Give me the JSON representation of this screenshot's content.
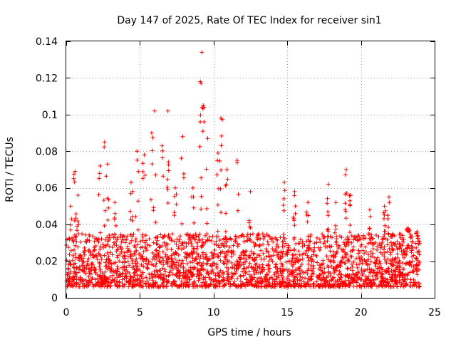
{
  "chart_data": {
    "type": "scatter",
    "title": "Day 147 of 2025, Rate Of TEC Index for receiver sin1",
    "xlabel": "GPS time / hours",
    "ylabel": "ROTI / TECUs",
    "xlim": [
      0,
      25
    ],
    "ylim": [
      0,
      0.14
    ],
    "xticks": [
      "0",
      "5",
      "10",
      "15",
      "20",
      "25"
    ],
    "yticks": [
      "0",
      "0.02",
      "0.04",
      "0.06",
      "0.08",
      "0.1",
      "0.12",
      "0.14"
    ],
    "xtick_values": [
      0,
      5,
      10,
      15,
      20,
      25
    ],
    "ytick_values": [
      0,
      0.02,
      0.04,
      0.06,
      0.08,
      0.1,
      0.12,
      0.14
    ],
    "grid": true,
    "marker": "+",
    "marker_color": "#ff0000",
    "x_data_range": [
      0,
      24
    ],
    "typical_band": [
      0.006,
      0.035
    ],
    "series": [
      {
        "name": "sin1",
        "peaks": [
          {
            "x": 0.3,
            "y": 0.05
          },
          {
            "x": 0.6,
            "y": 0.069
          },
          {
            "x": 0.8,
            "y": 0.056
          },
          {
            "x": 2.3,
            "y": 0.072
          },
          {
            "x": 2.6,
            "y": 0.085
          },
          {
            "x": 2.8,
            "y": 0.073
          },
          {
            "x": 3.3,
            "y": 0.052
          },
          {
            "x": 4.4,
            "y": 0.063
          },
          {
            "x": 4.8,
            "y": 0.08
          },
          {
            "x": 5.3,
            "y": 0.078
          },
          {
            "x": 5.8,
            "y": 0.09
          },
          {
            "x": 6.0,
            "y": 0.102
          },
          {
            "x": 6.5,
            "y": 0.083
          },
          {
            "x": 6.9,
            "y": 0.102
          },
          {
            "x": 7.4,
            "y": 0.06
          },
          {
            "x": 7.9,
            "y": 0.088
          },
          {
            "x": 8.6,
            "y": 0.06
          },
          {
            "x": 9.1,
            "y": 0.118
          },
          {
            "x": 9.2,
            "y": 0.134
          },
          {
            "x": 9.3,
            "y": 0.105
          },
          {
            "x": 9.6,
            "y": 0.087
          },
          {
            "x": 10.3,
            "y": 0.079
          },
          {
            "x": 10.5,
            "y": 0.098
          },
          {
            "x": 10.9,
            "y": 0.07
          },
          {
            "x": 11.6,
            "y": 0.075
          },
          {
            "x": 12.5,
            "y": 0.058
          },
          {
            "x": 14.8,
            "y": 0.063
          },
          {
            "x": 15.5,
            "y": 0.058
          },
          {
            "x": 16.4,
            "y": 0.052
          },
          {
            "x": 17.8,
            "y": 0.062
          },
          {
            "x": 18.3,
            "y": 0.052
          },
          {
            "x": 19.0,
            "y": 0.07
          },
          {
            "x": 19.3,
            "y": 0.056
          },
          {
            "x": 20.6,
            "y": 0.048
          },
          {
            "x": 21.6,
            "y": 0.05
          },
          {
            "x": 21.9,
            "y": 0.055
          },
          {
            "x": 23.2,
            "y": 0.038
          },
          {
            "x": 23.8,
            "y": 0.036
          }
        ]
      }
    ]
  }
}
